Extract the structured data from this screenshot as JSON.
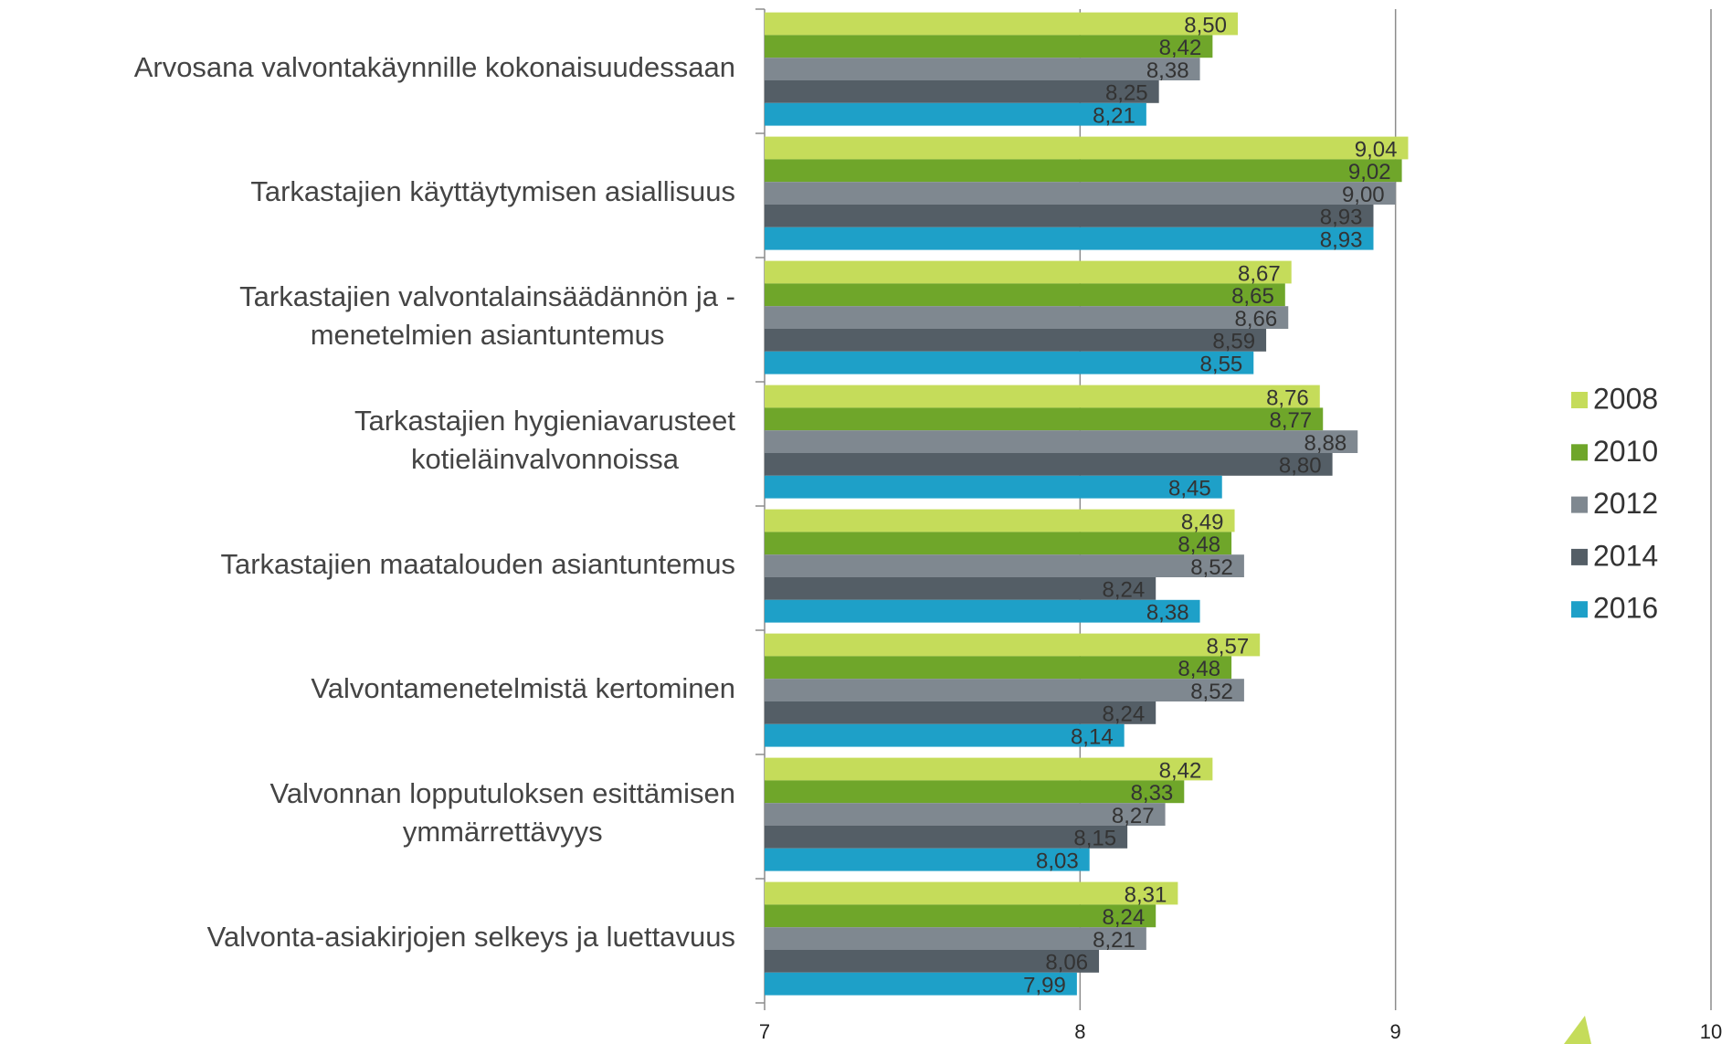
{
  "chart_data": {
    "type": "bar",
    "orientation": "horizontal",
    "categories": [
      [
        "Arvosana valvontakäynnille kokonaisuudessaan"
      ],
      [
        "Tarkastajien käyttäytymisen asiallisuus"
      ],
      [
        "Tarkastajien valvontalainsäädännön ja -",
        "menetelmien asiantuntemus"
      ],
      [
        "Tarkastajien hygieniavarusteet",
        "kotieläinvalvonnoissa"
      ],
      [
        "Tarkastajien maatalouden asiantuntemus"
      ],
      [
        "Valvontamenetelmistä kertominen"
      ],
      [
        "Valvonnan lopputuloksen esittämisen",
        "ymmärrettävyys"
      ],
      [
        "Valvonta-asiakirjojen selkeys ja luettavuus"
      ]
    ],
    "series": [
      {
        "name": "2008",
        "color": "#c5dc5a",
        "values": [
          8.5,
          9.04,
          8.67,
          8.76,
          8.49,
          8.57,
          8.42,
          8.31
        ],
        "value_labels": [
          "8,50",
          "9,04",
          "8,67",
          "8,76",
          "8,49",
          "8,57",
          "8,42",
          "8,31"
        ]
      },
      {
        "name": "2010",
        "color": "#6fa62a",
        "values": [
          8.42,
          9.02,
          8.65,
          8.77,
          8.48,
          8.48,
          8.33,
          8.24
        ],
        "value_labels": [
          "8,42",
          "9,02",
          "8,65",
          "8,77",
          "8,48",
          "8,48",
          "8,33",
          "8,24"
        ]
      },
      {
        "name": "2012",
        "color": "#7f8890",
        "values": [
          8.38,
          9.0,
          8.66,
          8.88,
          8.52,
          8.52,
          8.27,
          8.21
        ],
        "value_labels": [
          "8,38",
          "9,00",
          "8,66",
          "8,88",
          "8,52",
          "8,52",
          "8,27",
          "8,21"
        ]
      },
      {
        "name": "2014",
        "color": "#545e66",
        "values": [
          8.25,
          8.93,
          8.59,
          8.8,
          8.24,
          8.24,
          8.15,
          8.06
        ],
        "value_labels": [
          "8,25",
          "8,93",
          "8,59",
          "8,80",
          "8,24",
          "8,24",
          "8,15",
          "8,06"
        ]
      },
      {
        "name": "2016",
        "color": "#1ea0c8",
        "values": [
          8.21,
          8.93,
          8.55,
          8.45,
          8.38,
          8.14,
          8.03,
          7.99
        ],
        "value_labels": [
          "8,21",
          "8,93",
          "8,55",
          "8,45",
          "8,38",
          "8,14",
          "8,03",
          "7,99"
        ]
      }
    ],
    "xlim": [
      7,
      10
    ],
    "xticks": [
      7,
      8,
      9,
      10
    ],
    "grid": true,
    "legend": "right"
  }
}
